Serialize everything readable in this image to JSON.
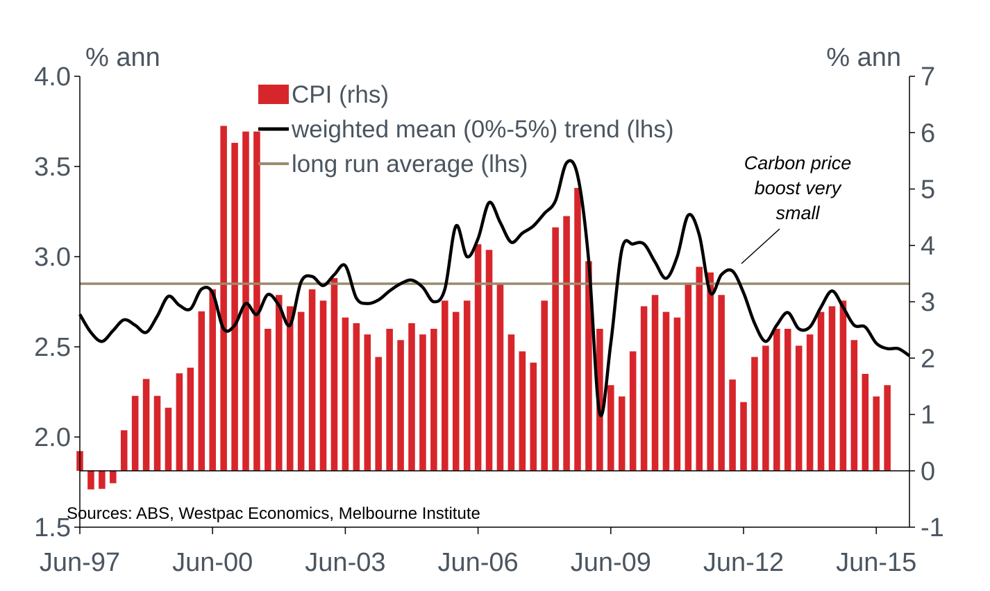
{
  "chart_data": {
    "type": "bar",
    "left_unit": "% ann",
    "right_unit": "% ann",
    "left_axis": {
      "ylim": [
        1.5,
        4.0
      ],
      "ticks": [
        "1.5",
        "2.0",
        "2.5",
        "3.0",
        "3.5",
        "4.0"
      ],
      "tick_values": [
        1.5,
        2.0,
        2.5,
        3.0,
        3.5,
        4.0
      ]
    },
    "right_axis": {
      "ylim": [
        -1,
        7
      ],
      "ticks": [
        "-1",
        "0",
        "1",
        "2",
        "3",
        "4",
        "5",
        "6",
        "7"
      ],
      "tick_values": [
        -1,
        0,
        1,
        2,
        3,
        4,
        5,
        6,
        7
      ]
    },
    "x_ticks": [
      "Jun-97",
      "Jun-00",
      "Jun-03",
      "Jun-06",
      "Jun-09",
      "Jun-12",
      "Jun-15"
    ],
    "x_tick_years": [
      1997.5,
      2000.5,
      2003.5,
      2006.5,
      2009.5,
      2012.5,
      2015.5
    ],
    "x_range": [
      1997.5,
      2016.25
    ],
    "grid": false,
    "legend_position": "top-center",
    "series": [
      {
        "name": "CPI (rhs)",
        "kind": "bar",
        "axis": "right",
        "color": "#d7262b",
        "x_start": 1997.5,
        "x_step": 0.25,
        "values": [
          0.35,
          -0.33,
          -0.32,
          -0.22,
          0.72,
          1.33,
          1.63,
          1.33,
          1.12,
          1.73,
          1.83,
          2.83,
          3.22,
          6.12,
          5.82,
          6.02,
          6.02,
          2.52,
          3.12,
          2.92,
          2.82,
          3.22,
          3.02,
          3.42,
          2.72,
          2.62,
          2.42,
          2.02,
          2.52,
          2.32,
          2.62,
          2.42,
          2.52,
          3.02,
          2.82,
          3.02,
          4.02,
          3.92,
          3.32,
          2.42,
          2.12,
          1.92,
          3.02,
          4.32,
          4.52,
          5.02,
          3.72,
          2.52,
          1.52,
          1.32,
          2.12,
          2.92,
          3.12,
          2.82,
          2.72,
          3.32,
          3.62,
          3.52,
          3.12,
          1.62,
          1.22,
          2.02,
          2.22,
          2.52,
          2.52,
          2.22,
          2.42,
          2.82,
          2.92,
          3.02,
          2.32,
          1.72,
          1.32,
          1.52
        ]
      },
      {
        "name": "weighted mean (0%-5%) trend (lhs)",
        "kind": "line",
        "axis": "left",
        "color": "#000000",
        "x_start": 1997.5,
        "x_step": 0.25,
        "values": [
          2.68,
          2.58,
          2.53,
          2.59,
          2.65,
          2.62,
          2.58,
          2.67,
          2.78,
          2.73,
          2.71,
          2.82,
          2.8,
          2.6,
          2.62,
          2.74,
          2.68,
          2.79,
          2.73,
          2.62,
          2.86,
          2.89,
          2.84,
          2.9,
          2.95,
          2.77,
          2.74,
          2.76,
          2.81,
          2.85,
          2.87,
          2.83,
          2.75,
          2.82,
          3.17,
          3.0,
          3.1,
          3.3,
          3.19,
          3.08,
          3.13,
          3.17,
          3.24,
          3.31,
          3.52,
          3.45,
          2.98,
          2.13,
          2.52,
          3.04,
          3.07,
          3.07,
          2.97,
          2.88,
          3.0,
          3.23,
          3.12,
          2.8,
          2.9,
          2.92,
          2.8,
          2.63,
          2.53,
          2.62,
          2.69,
          2.6,
          2.61,
          2.72,
          2.81,
          2.72,
          2.62,
          2.61,
          2.52,
          2.49,
          2.49,
          2.45
        ]
      },
      {
        "name": "long run average (lhs)",
        "kind": "hline",
        "axis": "left",
        "color": "#9a8a6e",
        "value": 2.85
      }
    ],
    "annotation": {
      "lines": [
        "Carbon price",
        "boost very",
        "small"
      ]
    },
    "source": "Sources: ABS, Westpac Economics, Melbourne Institute"
  }
}
